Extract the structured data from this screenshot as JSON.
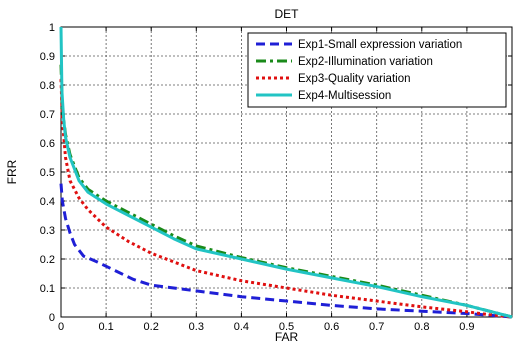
{
  "chart_data": {
    "type": "line",
    "title": "DET",
    "xlabel": "FAR",
    "ylabel": "FRR",
    "xlim": [
      0,
      1
    ],
    "ylim": [
      0,
      1
    ],
    "x_ticks": [
      "0",
      "0.1",
      "0.2",
      "0.3",
      "0.4",
      "0.5",
      "0.6",
      "0.7",
      "0.8",
      "0.9"
    ],
    "y_ticks": [
      "0",
      "0.1",
      "0.2",
      "0.3",
      "0.4",
      "0.5",
      "0.6",
      "0.7",
      "0.8",
      "0.9",
      "1"
    ],
    "grid": true,
    "legend_position": "top-right",
    "series": [
      {
        "name": "Exp1-Small expression variation",
        "color": "#1f1fd6",
        "style": "dashed",
        "x": [
          0,
          0.003,
          0.01,
          0.02,
          0.03,
          0.05,
          0.08,
          0.12,
          0.16,
          0.2,
          0.25,
          0.3,
          0.4,
          0.5,
          0.6,
          0.7,
          0.8,
          0.9,
          0.95,
          1.0
        ],
        "y": [
          0.46,
          0.4,
          0.34,
          0.29,
          0.25,
          0.21,
          0.19,
          0.16,
          0.13,
          0.11,
          0.1,
          0.09,
          0.07,
          0.055,
          0.04,
          0.028,
          0.02,
          0.012,
          0.006,
          0
        ]
      },
      {
        "name": "Exp2-Illumination variation",
        "color": "#1a8a1a",
        "style": "dashdot",
        "x": [
          0,
          0.003,
          0.01,
          0.02,
          0.04,
          0.06,
          0.1,
          0.15,
          0.2,
          0.25,
          0.3,
          0.4,
          0.5,
          0.6,
          0.7,
          0.8,
          0.9,
          0.95,
          1.0
        ],
        "y": [
          0.87,
          0.72,
          0.63,
          0.56,
          0.48,
          0.44,
          0.4,
          0.36,
          0.32,
          0.28,
          0.245,
          0.205,
          0.17,
          0.14,
          0.11,
          0.075,
          0.04,
          0.02,
          0
        ]
      },
      {
        "name": "Exp3-Quality variation",
        "color": "#e01010",
        "style": "dotted",
        "x": [
          0,
          0.003,
          0.01,
          0.02,
          0.04,
          0.06,
          0.1,
          0.15,
          0.2,
          0.25,
          0.3,
          0.4,
          0.5,
          0.6,
          0.7,
          0.8,
          0.9,
          0.95,
          1.0
        ],
        "y": [
          0.82,
          0.68,
          0.55,
          0.47,
          0.41,
          0.37,
          0.31,
          0.26,
          0.22,
          0.19,
          0.16,
          0.125,
          0.1,
          0.075,
          0.055,
          0.035,
          0.018,
          0.008,
          0
        ]
      },
      {
        "name": "Exp4-Multisession",
        "color": "#22c4c4",
        "style": "solid",
        "x": [
          0,
          0.002,
          0.006,
          0.01,
          0.02,
          0.04,
          0.06,
          0.1,
          0.15,
          0.2,
          0.25,
          0.3,
          0.4,
          0.5,
          0.6,
          0.7,
          0.8,
          0.9,
          0.95,
          1.0
        ],
        "y": [
          1.0,
          0.78,
          0.68,
          0.62,
          0.55,
          0.47,
          0.43,
          0.39,
          0.35,
          0.31,
          0.27,
          0.235,
          0.2,
          0.165,
          0.135,
          0.105,
          0.07,
          0.04,
          0.02,
          0
        ]
      }
    ]
  }
}
